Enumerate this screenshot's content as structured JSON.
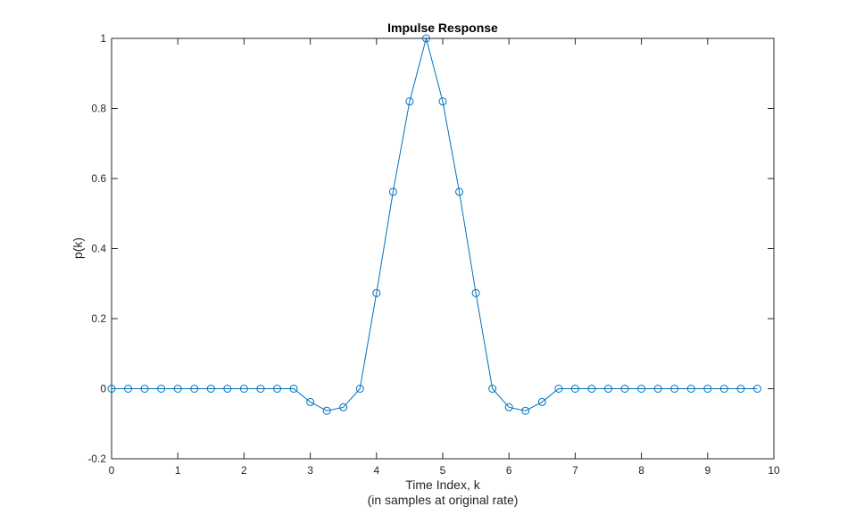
{
  "chart_data": {
    "type": "line",
    "title": "Impulse Response",
    "xlabel": "Time Index, k",
    "xlabel_sub": "(in samples at original rate)",
    "ylabel": "p(k)",
    "xlim": [
      0,
      10
    ],
    "ylim": [
      -0.2,
      1
    ],
    "xticks": [
      0,
      1,
      2,
      3,
      4,
      5,
      6,
      7,
      8,
      9,
      10
    ],
    "xtick_labels": [
      "0",
      "1",
      "2",
      "3",
      "4",
      "5",
      "6",
      "7",
      "8",
      "9",
      "10"
    ],
    "yticks": [
      -0.2,
      0,
      0.2,
      0.4,
      0.6,
      0.8,
      1
    ],
    "ytick_labels": [
      "-0.2",
      "0",
      "0.2",
      "0.4",
      "0.6",
      "0.8",
      "1"
    ],
    "grid": false,
    "marker": "circle",
    "color": "#0072BD",
    "series": [
      {
        "x": [
          0,
          0.25,
          0.5,
          0.75,
          1,
          1.25,
          1.5,
          1.75,
          2,
          2.25,
          2.5,
          2.75,
          3,
          3.25,
          3.5,
          3.75,
          4,
          4.25,
          4.5,
          4.75,
          5,
          5.25,
          5.5,
          5.75,
          6,
          6.25,
          6.5,
          6.75,
          7,
          7.25,
          7.5,
          7.75,
          8,
          8.25,
          8.5,
          8.75,
          9,
          9.25,
          9.5,
          9.75
        ],
        "values": [
          0,
          0,
          0,
          0,
          0,
          0,
          0,
          0,
          0,
          0,
          0,
          0,
          -0.038,
          -0.063,
          -0.053,
          0,
          0.273,
          0.562,
          0.82,
          1,
          0.82,
          0.562,
          0.273,
          0,
          -0.053,
          -0.063,
          -0.038,
          0,
          0,
          0,
          0,
          0,
          0,
          0,
          0,
          0,
          0,
          0,
          0,
          0
        ]
      }
    ]
  }
}
